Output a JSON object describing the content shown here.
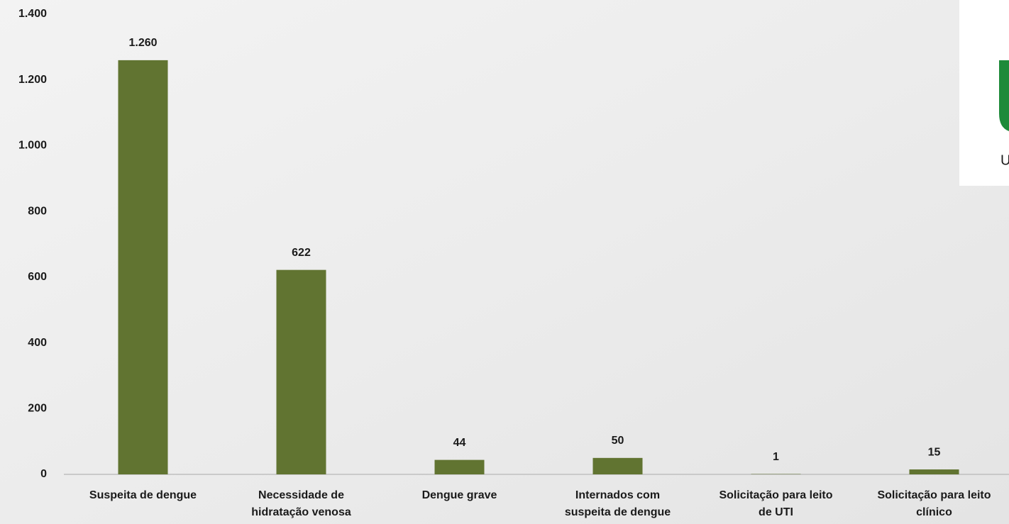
{
  "chart_data": {
    "type": "bar",
    "categories": [
      [
        "Suspeita de dengue"
      ],
      [
        "Necessidade de",
        "hidratação venosa"
      ],
      [
        "Dengue grave"
      ],
      [
        "Internados com",
        "suspeita de dengue"
      ],
      [
        "Solicitação para leito",
        "de UTI"
      ],
      [
        "Solicitação para leito",
        "clínico"
      ]
    ],
    "values": [
      1260,
      622,
      44,
      50,
      1,
      15
    ],
    "value_labels": [
      "1.260",
      "622",
      "44",
      "50",
      "1",
      "15"
    ],
    "color": "#617431",
    "ylim": [
      0,
      1400
    ],
    "yticks": [
      0,
      200,
      400,
      600,
      800,
      {
        "value": 1000,
        "label": "1.000"
      },
      {
        "value": 1200,
        "label": "1.200"
      },
      {
        "value": 1400,
        "label": "1.400"
      }
    ],
    "grid": false
  },
  "logo": {
    "text": "U"
  }
}
